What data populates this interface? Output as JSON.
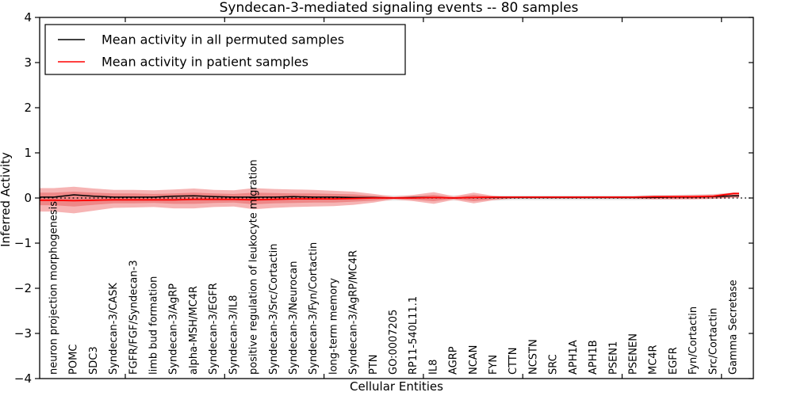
{
  "title": "Syndecan-3-mediated signaling events -- 80 samples",
  "legend": {
    "items": [
      {
        "label": "Mean activity in all permuted samples",
        "color": "#000000"
      },
      {
        "label": "Mean activity in patient samples",
        "color": "#ff0000"
      }
    ]
  },
  "chart_data": {
    "type": "line",
    "title": "Syndecan-3-mediated signaling events -- 80 samples",
    "xlabel": "Cellular Entities",
    "ylabel": "Inferred Activity",
    "ylim": [
      -4,
      4
    ],
    "yticks": [
      4,
      3,
      2,
      1,
      0,
      -1,
      -2,
      -3,
      -4
    ],
    "grid": false,
    "legend_position": "upper left",
    "zero_line_dotted": true,
    "categories": [
      "neuron projection morphogenesis",
      "POMC",
      "SDC3",
      "Syndecan-3/CASK",
      "FGFR/FGF/Syndecan-3",
      "limb bud formation",
      "Syndecan-3/AgRP",
      "alpha-MSH/MC4R",
      "Syndecan-3/EGFR",
      "Syndecan-3/IL8",
      "positive regulation of leukocyte migration",
      "Syndecan-3/Src/Cortactin",
      "Syndecan-3/Neurocan",
      "Syndecan-3/Fyn/Cortactin",
      "long-term memory",
      "Syndecan-3/AgRP/MC4R",
      "PTN",
      "GO:0007205",
      "RP11-540L11.1",
      "IL8",
      "AGRP",
      "NCAN",
      "FYN",
      "CTTN",
      "NCSTN",
      "SRC",
      "APH1A",
      "APH1B",
      "PSEN1",
      "PSENEN",
      "MC4R",
      "EGFR",
      "Fyn/Cortactin",
      "Src/Cortactin",
      "Gamma Secretase"
    ],
    "series": [
      {
        "name": "Mean activity in all permuted samples",
        "color": "#000000",
        "values": [
          0.02,
          0.07,
          0.04,
          0.02,
          0.02,
          0.02,
          0.04,
          0.05,
          0.03,
          0.02,
          0.02,
          0.02,
          0.03,
          0.02,
          0.02,
          0.01,
          0.01,
          0.0,
          0.01,
          0.01,
          0.0,
          0.01,
          0.01,
          0.01,
          0.01,
          0.01,
          0.01,
          0.01,
          0.01,
          0.01,
          0.01,
          0.02,
          0.02,
          0.03,
          0.05
        ]
      },
      {
        "name": "Mean activity in patient samples",
        "color": "#ff0000",
        "values": [
          -0.05,
          -0.06,
          -0.05,
          -0.04,
          -0.04,
          -0.04,
          -0.04,
          -0.03,
          -0.03,
          -0.03,
          -0.04,
          -0.03,
          -0.02,
          -0.02,
          -0.02,
          -0.01,
          0.0,
          0.0,
          0.0,
          0.01,
          0.0,
          0.01,
          0.02,
          0.02,
          0.02,
          0.02,
          0.02,
          0.02,
          0.02,
          0.02,
          0.03,
          0.03,
          0.03,
          0.04,
          0.1
        ]
      }
    ],
    "bands": [
      {
        "name": "permuted-spread-band",
        "color": "#e8e8e8",
        "upper": [
          0.08,
          0.09,
          0.08,
          0.07,
          0.07,
          0.07,
          0.07,
          0.07,
          0.07,
          0.07,
          0.07,
          0.07,
          0.07,
          0.07,
          0.07,
          0.07,
          0.07,
          0.06,
          0.06,
          0.07,
          0.06,
          0.07,
          0.06,
          0.06,
          0.06,
          0.06,
          0.06,
          0.06,
          0.06,
          0.06,
          0.07,
          0.07,
          0.08,
          0.09,
          0.12
        ],
        "lower": [
          -0.1,
          -0.11,
          -0.1,
          -0.08,
          -0.08,
          -0.08,
          -0.08,
          -0.08,
          -0.08,
          -0.08,
          -0.08,
          -0.08,
          -0.08,
          -0.08,
          -0.08,
          -0.07,
          -0.07,
          -0.06,
          -0.06,
          -0.06,
          -0.06,
          -0.06,
          -0.06,
          -0.05,
          -0.05,
          -0.05,
          -0.05,
          -0.05,
          -0.05,
          -0.05,
          -0.04,
          -0.04,
          -0.03,
          -0.02,
          0.0
        ]
      },
      {
        "name": "patient-band-outer",
        "color": "#f6b4b4",
        "upper": [
          0.22,
          0.25,
          0.21,
          0.18,
          0.18,
          0.17,
          0.19,
          0.21,
          0.18,
          0.17,
          0.22,
          0.2,
          0.19,
          0.18,
          0.16,
          0.14,
          0.09,
          0.03,
          0.07,
          0.13,
          0.04,
          0.12,
          0.05,
          0.01,
          0.01,
          0.01,
          0.01,
          0.01,
          0.01,
          0.03,
          0.05,
          0.06,
          0.07,
          0.08,
          0.12
        ],
        "lower": [
          -0.3,
          -0.34,
          -0.28,
          -0.22,
          -0.21,
          -0.2,
          -0.23,
          -0.23,
          -0.2,
          -0.19,
          -0.25,
          -0.22,
          -0.2,
          -0.19,
          -0.18,
          -0.15,
          -0.1,
          -0.03,
          -0.07,
          -0.13,
          -0.04,
          -0.12,
          -0.05,
          -0.01,
          -0.01,
          -0.01,
          -0.01,
          -0.01,
          -0.01,
          -0.02,
          -0.03,
          -0.03,
          -0.03,
          -0.02,
          0.0
        ]
      },
      {
        "name": "patient-band-inner",
        "color": "#ee8787",
        "upper": [
          0.12,
          0.14,
          0.12,
          0.1,
          0.1,
          0.09,
          0.1,
          0.12,
          0.1,
          0.09,
          0.12,
          0.11,
          0.1,
          0.1,
          0.09,
          0.08,
          0.05,
          0.02,
          0.04,
          0.07,
          0.02,
          0.07,
          0.03,
          0.01,
          0.01,
          0.01,
          0.01,
          0.01,
          0.01,
          0.02,
          0.03,
          0.03,
          0.04,
          0.04,
          0.07
        ],
        "lower": [
          -0.16,
          -0.19,
          -0.15,
          -0.12,
          -0.12,
          -0.11,
          -0.13,
          -0.13,
          -0.11,
          -0.1,
          -0.14,
          -0.12,
          -0.11,
          -0.1,
          -0.1,
          -0.08,
          -0.06,
          -0.02,
          -0.04,
          -0.07,
          -0.02,
          -0.07,
          -0.03,
          -0.01,
          -0.01,
          -0.01,
          -0.01,
          -0.01,
          -0.01,
          -0.01,
          -0.02,
          -0.02,
          -0.02,
          -0.01,
          0.02
        ]
      }
    ]
  }
}
